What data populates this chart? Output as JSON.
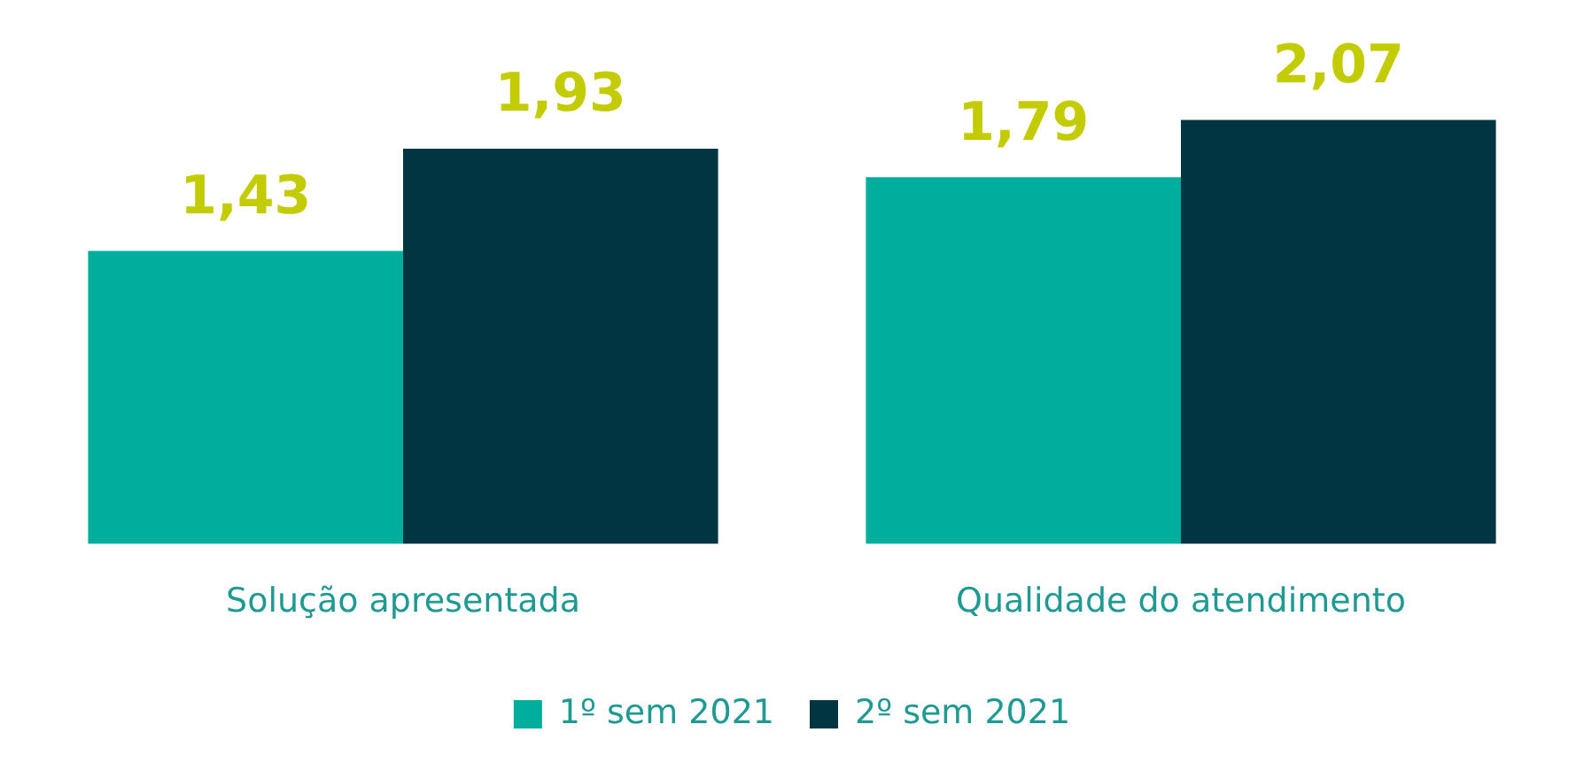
{
  "chart_data": {
    "type": "bar",
    "categories": [
      "Solução apresentada",
      "Qualidade do atendimento"
    ],
    "series": [
      {
        "name": "1º sem 2021",
        "color": "#00ae9d",
        "values": [
          1.43,
          1.79
        ],
        "value_labels": [
          "1,43",
          "1,79"
        ]
      },
      {
        "name": "2º sem 2021",
        "color": "#023542",
        "values": [
          1.93,
          2.07
        ],
        "value_labels": [
          "1,93",
          "2,07"
        ]
      }
    ],
    "grid": false,
    "legend": "bottom"
  }
}
